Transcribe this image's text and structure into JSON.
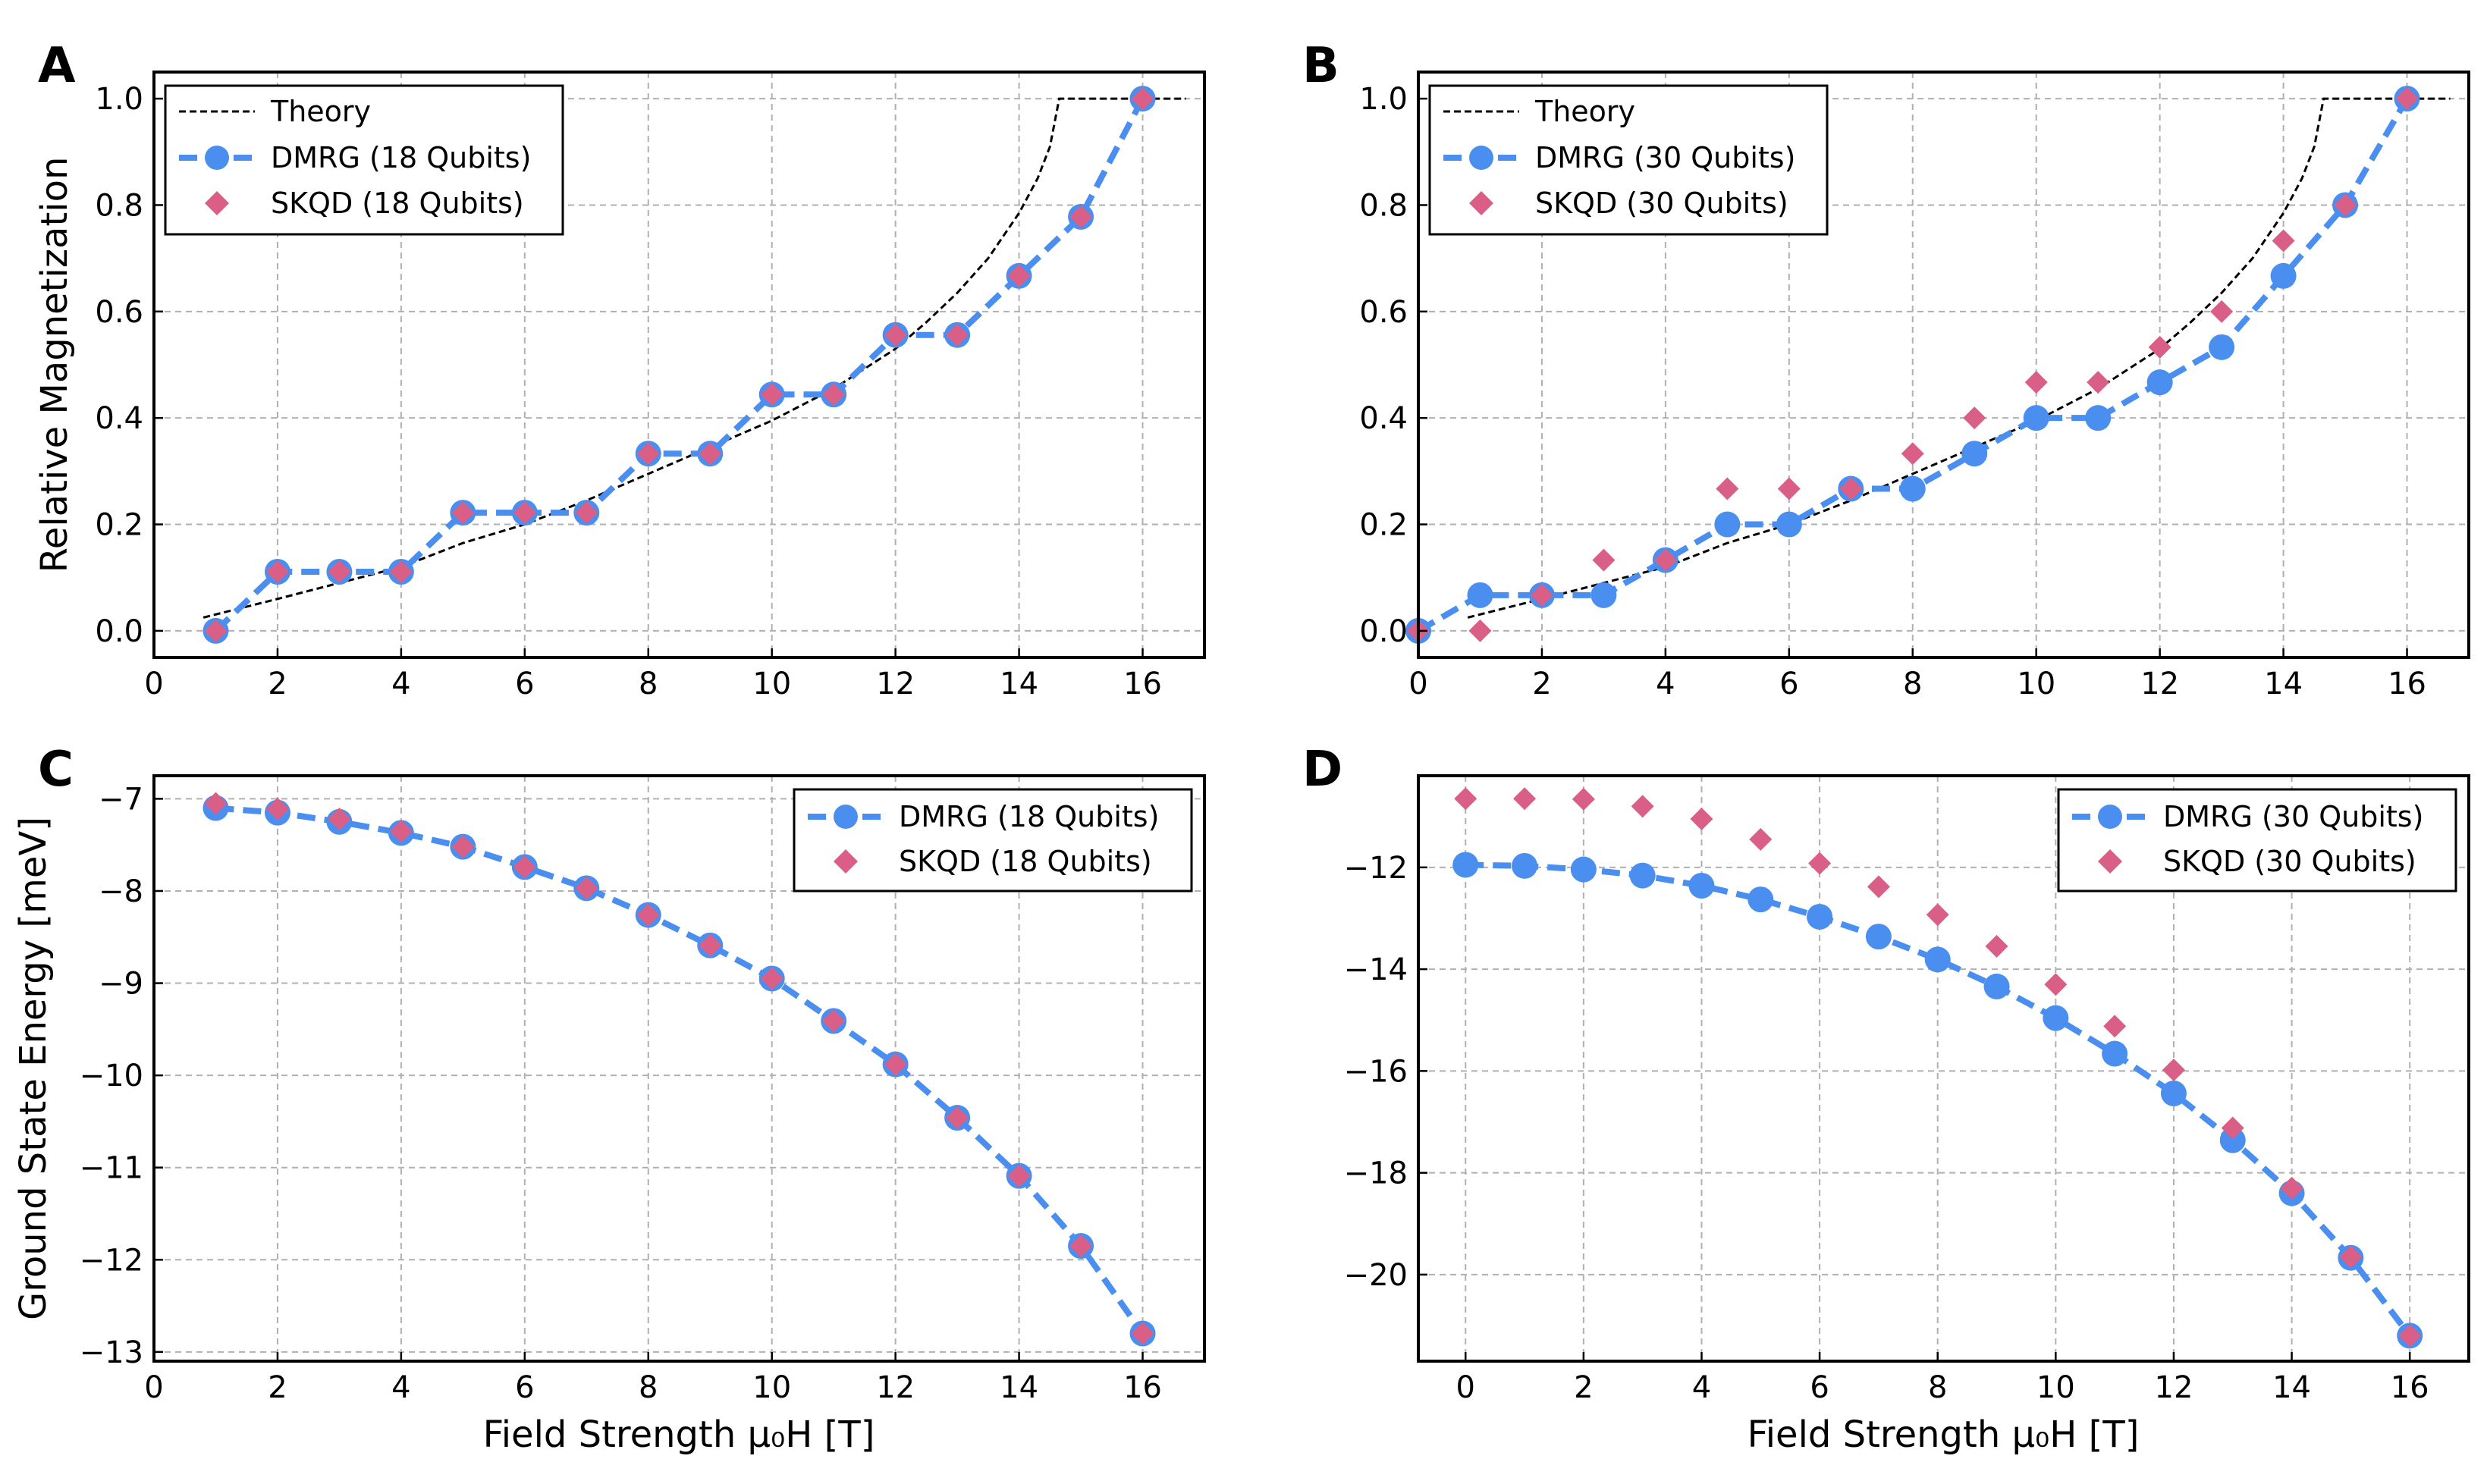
{
  "colors": {
    "theory": "#000000",
    "dmrg": "#4a8ef0",
    "skqd": "#d95f86",
    "grid": "#b0b0b0"
  },
  "shared": {
    "xlabel": "Field Strength μ₀H [T]"
  },
  "chart_data": [
    {
      "panel": "A",
      "type": "line",
      "ylabel": "Relative Magnetization",
      "xlabel": "",
      "xlim": [
        0,
        17
      ],
      "ylim": [
        -0.05,
        1.05
      ],
      "xticks": [
        0,
        2,
        4,
        6,
        8,
        10,
        12,
        14,
        16
      ],
      "yticks": [
        0.0,
        0.2,
        0.4,
        0.6,
        0.8,
        1.0
      ],
      "ytick_labels": [
        "0.0",
        "0.2",
        "0.4",
        "0.6",
        "0.8",
        "1.0"
      ],
      "legend_position": "top-left",
      "series": [
        {
          "name": "Theory",
          "style": "theory",
          "x": [
            0.8,
            2,
            3,
            4,
            5,
            6,
            7,
            8,
            9,
            10,
            11,
            12,
            12.5,
            13,
            13.5,
            14,
            14.3,
            14.5,
            14.6,
            14.65,
            16.7
          ],
          "values": [
            0.025,
            0.06,
            0.09,
            0.12,
            0.165,
            0.2,
            0.245,
            0.295,
            0.345,
            0.395,
            0.455,
            0.53,
            0.58,
            0.635,
            0.7,
            0.785,
            0.85,
            0.91,
            0.97,
            1.0,
            1.0
          ]
        },
        {
          "name": "DMRG (18 Qubits)",
          "style": "dmrg",
          "x": [
            1,
            2,
            3,
            4,
            5,
            6,
            7,
            8,
            9,
            10,
            11,
            12,
            13,
            14,
            15,
            16
          ],
          "values": [
            0.0,
            0.111,
            0.111,
            0.111,
            0.222,
            0.222,
            0.222,
            0.333,
            0.333,
            0.444,
            0.444,
            0.556,
            0.556,
            0.667,
            0.778,
            1.0
          ]
        },
        {
          "name": "SKQD (18 Qubits)",
          "style": "skqd",
          "x": [
            1,
            2,
            3,
            4,
            5,
            6,
            7,
            8,
            9,
            10,
            11,
            12,
            13,
            14,
            15,
            16
          ],
          "values": [
            0.0,
            0.111,
            0.111,
            0.111,
            0.222,
            0.222,
            0.222,
            0.333,
            0.333,
            0.444,
            0.444,
            0.556,
            0.556,
            0.667,
            0.778,
            1.0
          ]
        }
      ]
    },
    {
      "panel": "B",
      "type": "line",
      "ylabel": "",
      "xlabel": "",
      "xlim": [
        0,
        17
      ],
      "ylim": [
        -0.05,
        1.05
      ],
      "xticks": [
        0,
        2,
        4,
        6,
        8,
        10,
        12,
        14,
        16
      ],
      "yticks": [
        0.0,
        0.2,
        0.4,
        0.6,
        0.8,
        1.0
      ],
      "ytick_labels": [
        "0.0",
        "0.2",
        "0.4",
        "0.6",
        "0.8",
        "1.0"
      ],
      "legend_position": "top-left",
      "series": [
        {
          "name": "Theory",
          "style": "theory",
          "x": [
            0.8,
            2,
            3,
            4,
            5,
            6,
            7,
            8,
            9,
            10,
            11,
            12,
            12.5,
            13,
            13.5,
            14,
            14.3,
            14.5,
            14.6,
            14.65,
            16.7
          ],
          "values": [
            0.025,
            0.06,
            0.09,
            0.12,
            0.165,
            0.2,
            0.245,
            0.295,
            0.345,
            0.395,
            0.455,
            0.53,
            0.58,
            0.635,
            0.7,
            0.785,
            0.85,
            0.91,
            0.97,
            1.0,
            1.0
          ]
        },
        {
          "name": "DMRG (30 Qubits)",
          "style": "dmrg",
          "x": [
            0,
            1,
            2,
            3,
            4,
            5,
            6,
            7,
            8,
            9,
            10,
            11,
            12,
            13,
            14,
            15,
            16
          ],
          "values": [
            0.0,
            0.067,
            0.067,
            0.067,
            0.133,
            0.2,
            0.2,
            0.267,
            0.267,
            0.333,
            0.4,
            0.4,
            0.467,
            0.533,
            0.667,
            0.8,
            1.0
          ]
        },
        {
          "name": "SKQD (30 Qubits)",
          "style": "skqd",
          "x": [
            0,
            1,
            2,
            3,
            4,
            5,
            6,
            7,
            8,
            9,
            10,
            11,
            12,
            13,
            14,
            15,
            16
          ],
          "values": [
            0.0,
            0.0,
            0.067,
            0.133,
            0.133,
            0.267,
            0.267,
            0.267,
            0.333,
            0.4,
            0.467,
            0.467,
            0.533,
            0.6,
            0.733,
            0.8,
            1.0
          ]
        }
      ]
    },
    {
      "panel": "C",
      "type": "line",
      "ylabel": "Ground State Energy [meV]",
      "xlabel": "Field Strength μ₀H [T]",
      "xlim": [
        0,
        17
      ],
      "ylim": [
        -13.1,
        -6.75
      ],
      "xticks": [
        0,
        2,
        4,
        6,
        8,
        10,
        12,
        14,
        16
      ],
      "yticks": [
        -7,
        -8,
        -9,
        -10,
        -11,
        -12,
        -13
      ],
      "ytick_labels": [
        "−7",
        "−8",
        "−9",
        "−10",
        "−11",
        "−12",
        "−13"
      ],
      "legend_position": "top-right",
      "series": [
        {
          "name": "DMRG (18 Qubits)",
          "style": "dmrg",
          "x": [
            1,
            2,
            3,
            4,
            5,
            6,
            7,
            8,
            9,
            10,
            11,
            12,
            13,
            14,
            15,
            16
          ],
          "values": [
            -7.1,
            -7.15,
            -7.25,
            -7.37,
            -7.52,
            -7.74,
            -7.97,
            -8.26,
            -8.59,
            -8.95,
            -9.41,
            -9.88,
            -10.46,
            -11.09,
            -11.85,
            -12.8
          ]
        },
        {
          "name": "SKQD (18 Qubits)",
          "style": "skqd",
          "x": [
            1,
            2,
            3,
            4,
            5,
            6,
            7,
            8,
            9,
            10,
            11,
            12,
            13,
            14,
            15,
            16
          ],
          "values": [
            -7.05,
            -7.11,
            -7.22,
            -7.35,
            -7.52,
            -7.74,
            -7.97,
            -8.26,
            -8.59,
            -8.95,
            -9.41,
            -9.88,
            -10.46,
            -11.09,
            -11.85,
            -12.8
          ]
        }
      ]
    },
    {
      "panel": "D",
      "type": "line",
      "ylabel": "",
      "xlabel": "Field Strength μ₀H [T]",
      "xlim": [
        -0.8,
        17
      ],
      "ylim": [
        -21.7,
        -10.2
      ],
      "xticks": [
        0,
        2,
        4,
        6,
        8,
        10,
        12,
        14,
        16
      ],
      "yticks": [
        -12,
        -14,
        -16,
        -18,
        -20
      ],
      "ytick_labels": [
        "−12",
        "−14",
        "−16",
        "−18",
        "−20"
      ],
      "legend_position": "top-right",
      "series": [
        {
          "name": "DMRG (30 Qubits)",
          "style": "dmrg",
          "x": [
            0,
            1,
            2,
            3,
            4,
            5,
            6,
            7,
            8,
            9,
            10,
            11,
            12,
            13,
            14,
            15,
            16
          ],
          "values": [
            -11.95,
            -11.97,
            -12.04,
            -12.16,
            -12.36,
            -12.63,
            -12.97,
            -13.36,
            -13.81,
            -14.34,
            -14.96,
            -15.66,
            -16.44,
            -17.36,
            -18.4,
            -19.67,
            -21.2
          ]
        },
        {
          "name": "SKQD (30 Qubits)",
          "style": "skqd",
          "x": [
            0,
            1,
            2,
            3,
            4,
            5,
            6,
            7,
            8,
            9,
            10,
            11,
            12,
            13,
            14,
            15,
            16
          ],
          "values": [
            -10.65,
            -10.65,
            -10.66,
            -10.8,
            -11.05,
            -11.45,
            -11.92,
            -12.38,
            -12.93,
            -13.55,
            -14.3,
            -15.12,
            -15.98,
            -17.12,
            -18.3,
            -19.65,
            -21.2
          ]
        }
      ]
    }
  ]
}
